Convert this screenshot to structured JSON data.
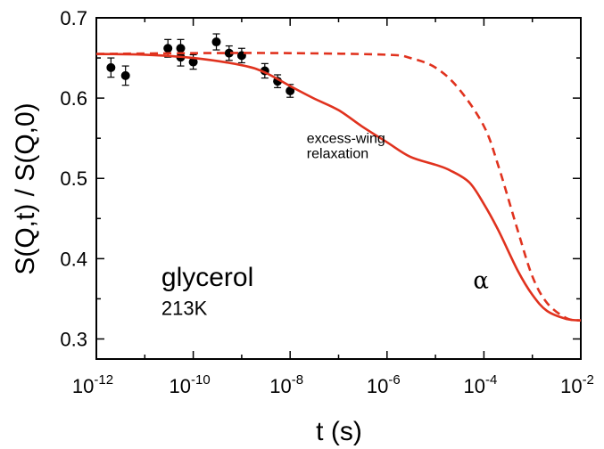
{
  "chart_data": {
    "type": "line",
    "xlabel": "t (s)",
    "ylabel": "S(Q,t) / S(Q,0)",
    "x_scale": "log",
    "xlim": [
      1e-12,
      0.01
    ],
    "ylim": [
      0.275,
      0.7
    ],
    "x_ticks": [
      {
        "value": 1e-12,
        "base": "10",
        "exp": "-12"
      },
      {
        "value": 1e-10,
        "base": "10",
        "exp": "-10"
      },
      {
        "value": 1e-08,
        "base": "10",
        "exp": "-8"
      },
      {
        "value": 1e-06,
        "base": "10",
        "exp": "-6"
      },
      {
        "value": 0.0001,
        "base": "10",
        "exp": "-4"
      },
      {
        "value": 0.01,
        "base": "10",
        "exp": "-2"
      }
    ],
    "y_ticks": [
      {
        "value": 0.3,
        "label": "0.3"
      },
      {
        "value": 0.4,
        "label": "0.4"
      },
      {
        "value": 0.5,
        "label": "0.5"
      },
      {
        "value": 0.6,
        "label": "0.6"
      },
      {
        "value": 0.7,
        "label": "0.7"
      }
    ],
    "series": [
      {
        "style": "markers-errorbars",
        "color": "#000000",
        "x": [
          2e-12,
          4e-12,
          3e-11,
          5.5e-11,
          5.5e-11,
          1e-10,
          3e-10,
          5.5e-10,
          1e-09,
          3e-09,
          5.5e-09,
          1e-08
        ],
        "y": [
          0.638,
          0.628,
          0.662,
          0.662,
          0.651,
          0.645,
          0.67,
          0.656,
          0.653,
          0.634,
          0.621,
          0.609
        ],
        "err": [
          0.012,
          0.012,
          0.011,
          0.011,
          0.011,
          0.009,
          0.01,
          0.009,
          0.009,
          0.009,
          0.008,
          0.008
        ]
      },
      {
        "style": "solid",
        "color": "#e0321e",
        "x": [
          1e-12,
          1e-11,
          1e-10,
          1e-09,
          3e-09,
          1e-08,
          3e-08,
          1e-07,
          3e-07,
          1e-06,
          3e-06,
          1e-05,
          2e-05,
          5e-05,
          0.0001,
          0.0002,
          0.0005,
          0.001,
          0.002,
          0.005,
          0.01
        ],
        "y": [
          0.655,
          0.654,
          0.65,
          0.641,
          0.632,
          0.615,
          0.6,
          0.585,
          0.565,
          0.545,
          0.527,
          0.517,
          0.51,
          0.495,
          0.468,
          0.435,
          0.385,
          0.355,
          0.335,
          0.325,
          0.323
        ]
      },
      {
        "style": "dashed",
        "color": "#e0321e",
        "x": [
          1e-12,
          1e-10,
          1e-08,
          1e-06,
          3e-06,
          1e-05,
          3e-05,
          0.0001,
          0.0002,
          0.0005,
          0.001,
          0.002,
          0.005,
          0.01
        ],
        "y": [
          0.655,
          0.656,
          0.656,
          0.654,
          0.65,
          0.638,
          0.612,
          0.565,
          0.515,
          0.435,
          0.378,
          0.345,
          0.326,
          0.323
        ]
      }
    ],
    "annotations": [
      {
        "text": "excess-wing",
        "x": 2.2e-08,
        "y": 0.544,
        "class": "annot-small"
      },
      {
        "text": "relaxation",
        "x": 2.2e-08,
        "y": 0.525,
        "class": "annot-small"
      },
      {
        "text": "glycerol",
        "x": 2.2e-11,
        "y": 0.366,
        "class": "annot-big"
      },
      {
        "text": "213K",
        "x": 2.2e-11,
        "y": 0.33,
        "class": "annot-mid"
      },
      {
        "text": "α",
        "x": 6e-05,
        "y": 0.363,
        "class": "alpha"
      }
    ]
  }
}
